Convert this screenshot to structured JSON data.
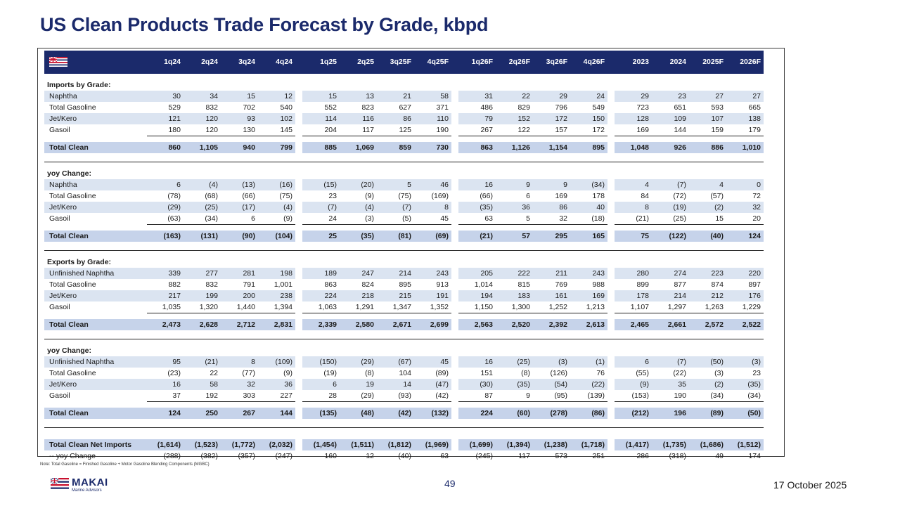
{
  "title": "US Clean Products Trade Forecast by Grade, kbpd",
  "columns": [
    "1q24",
    "2q24",
    "3q24",
    "4q24",
    "1q25",
    "2q25",
    "3q25F",
    "4q25F",
    "1q26F",
    "2q26F",
    "3q26F",
    "4q26F",
    "2023",
    "2024",
    "2025F",
    "2026F"
  ],
  "sections": [
    {
      "heading": "Imports by Grade:",
      "rows": [
        {
          "label": "Naphtha",
          "values": [
            "30",
            "34",
            "15",
            "12",
            "15",
            "13",
            "21",
            "58",
            "31",
            "22",
            "29",
            "24",
            "29",
            "23",
            "27",
            "27"
          ]
        },
        {
          "label": "Total Gasoline",
          "values": [
            "529",
            "832",
            "702",
            "540",
            "552",
            "823",
            "627",
            "371",
            "486",
            "829",
            "796",
            "549",
            "723",
            "651",
            "593",
            "665"
          ]
        },
        {
          "label": "Jet/Kero",
          "values": [
            "121",
            "120",
            "93",
            "102",
            "114",
            "116",
            "86",
            "110",
            "79",
            "152",
            "172",
            "150",
            "128",
            "109",
            "107",
            "138"
          ]
        },
        {
          "label": "Gasoil",
          "values": [
            "180",
            "120",
            "130",
            "145",
            "204",
            "117",
            "125",
            "190",
            "267",
            "122",
            "157",
            "172",
            "169",
            "144",
            "159",
            "179"
          ]
        }
      ],
      "total": {
        "label": "Total Clean",
        "values": [
          "860",
          "1,105",
          "940",
          "799",
          "885",
          "1,069",
          "859",
          "730",
          "863",
          "1,126",
          "1,154",
          "895",
          "1,048",
          "926",
          "886",
          "1,010"
        ]
      }
    },
    {
      "heading": "yoy Change:",
      "rows": [
        {
          "label": "Naphtha",
          "values": [
            "6",
            "(4)",
            "(13)",
            "(16)",
            "(15)",
            "(20)",
            "5",
            "46",
            "16",
            "9",
            "9",
            "(34)",
            "4",
            "(7)",
            "4",
            "0"
          ]
        },
        {
          "label": "Total Gasoline",
          "values": [
            "(78)",
            "(68)",
            "(66)",
            "(75)",
            "23",
            "(9)",
            "(75)",
            "(169)",
            "(66)",
            "6",
            "169",
            "178",
            "84",
            "(72)",
            "(57)",
            "72"
          ]
        },
        {
          "label": "Jet/Kero",
          "values": [
            "(29)",
            "(25)",
            "(17)",
            "(4)",
            "(7)",
            "(4)",
            "(7)",
            "8",
            "(35)",
            "36",
            "86",
            "40",
            "8",
            "(19)",
            "(2)",
            "32"
          ]
        },
        {
          "label": "Gasoil",
          "values": [
            "(63)",
            "(34)",
            "6",
            "(9)",
            "24",
            "(3)",
            "(5)",
            "45",
            "63",
            "5",
            "32",
            "(18)",
            "(21)",
            "(25)",
            "15",
            "20"
          ]
        }
      ],
      "total": {
        "label": "Total Clean",
        "values": [
          "(163)",
          "(131)",
          "(90)",
          "(104)",
          "25",
          "(35)",
          "(81)",
          "(69)",
          "(21)",
          "57",
          "295",
          "165",
          "75",
          "(122)",
          "(40)",
          "124"
        ]
      }
    },
    {
      "heading": "Exports by Grade:",
      "rows": [
        {
          "label": "Unfinished Naphtha",
          "values": [
            "339",
            "277",
            "281",
            "198",
            "189",
            "247",
            "214",
            "243",
            "205",
            "222",
            "211",
            "243",
            "280",
            "274",
            "223",
            "220"
          ]
        },
        {
          "label": "Total Gasoline",
          "values": [
            "882",
            "832",
            "791",
            "1,001",
            "863",
            "824",
            "895",
            "913",
            "1,014",
            "815",
            "769",
            "988",
            "899",
            "877",
            "874",
            "897"
          ]
        },
        {
          "label": "Jet/Kero",
          "values": [
            "217",
            "199",
            "200",
            "238",
            "224",
            "218",
            "215",
            "191",
            "194",
            "183",
            "161",
            "169",
            "178",
            "214",
            "212",
            "176"
          ]
        },
        {
          "label": "Gasoil",
          "values": [
            "1,035",
            "1,320",
            "1,440",
            "1,394",
            "1,063",
            "1,291",
            "1,347",
            "1,352",
            "1,150",
            "1,300",
            "1,252",
            "1,213",
            "1,107",
            "1,297",
            "1,263",
            "1,229"
          ]
        }
      ],
      "total": {
        "label": "Total Clean",
        "values": [
          "2,473",
          "2,628",
          "2,712",
          "2,831",
          "2,339",
          "2,580",
          "2,671",
          "2,699",
          "2,563",
          "2,520",
          "2,392",
          "2,613",
          "2,465",
          "2,661",
          "2,572",
          "2,522"
        ]
      }
    },
    {
      "heading": "yoy Change:",
      "rows": [
        {
          "label": "Unfinished Naphtha",
          "values": [
            "95",
            "(21)",
            "8",
            "(109)",
            "(150)",
            "(29)",
            "(67)",
            "45",
            "16",
            "(25)",
            "(3)",
            "(1)",
            "6",
            "(7)",
            "(50)",
            "(3)"
          ]
        },
        {
          "label": "Total Gasoline",
          "values": [
            "(23)",
            "22",
            "(77)",
            "(9)",
            "(19)",
            "(8)",
            "104",
            "(89)",
            "151",
            "(8)",
            "(126)",
            "76",
            "(55)",
            "(22)",
            "(3)",
            "23"
          ]
        },
        {
          "label": "Jet/Kero",
          "values": [
            "16",
            "58",
            "32",
            "36",
            "6",
            "19",
            "14",
            "(47)",
            "(30)",
            "(35)",
            "(54)",
            "(22)",
            "(9)",
            "35",
            "(2)",
            "(35)"
          ]
        },
        {
          "label": "Gasoil",
          "values": [
            "37",
            "192",
            "303",
            "227",
            "28",
            "(29)",
            "(93)",
            "(42)",
            "87",
            "9",
            "(95)",
            "(139)",
            "(153)",
            "190",
            "(34)",
            "(34)"
          ]
        }
      ],
      "total": {
        "label": "Total Clean",
        "values": [
          "124",
          "250",
          "267",
          "144",
          "(135)",
          "(48)",
          "(42)",
          "(132)",
          "224",
          "(60)",
          "(278)",
          "(86)",
          "(212)",
          "196",
          "(89)",
          "(50)"
        ]
      }
    }
  ],
  "net_imports": {
    "label": "Total Clean Net Imports",
    "values": [
      "(1,614)",
      "(1,523)",
      "(1,772)",
      "(2,032)",
      "(1,454)",
      "(1,511)",
      "(1,812)",
      "(1,969)",
      "(1,699)",
      "(1,394)",
      "(1,238)",
      "(1,718)",
      "(1,417)",
      "(1,735)",
      "(1,686)",
      "(1,512)"
    ]
  },
  "net_yoy": {
    "label": "-- yoy Change",
    "values": [
      "(288)",
      "(382)",
      "(357)",
      "(247)",
      "160",
      "12",
      "(40)",
      "63",
      "(245)",
      "117",
      "573",
      "251",
      "286",
      "(318)",
      "49",
      "174"
    ]
  },
  "note": "Note: Total Gasoline = Finished Gasoline + Motor Gasoline Blending Components (MGBC)",
  "page_number": "49",
  "date": "17 October 2025",
  "logo": {
    "name": "MAKAI",
    "subtitle": "Marine Advisors"
  },
  "colors": {
    "navy": "#1b2a6b",
    "total_fill": "#c6d3ea",
    "row_shade": "#dbe4f1",
    "flag_red": "#c8102e"
  }
}
